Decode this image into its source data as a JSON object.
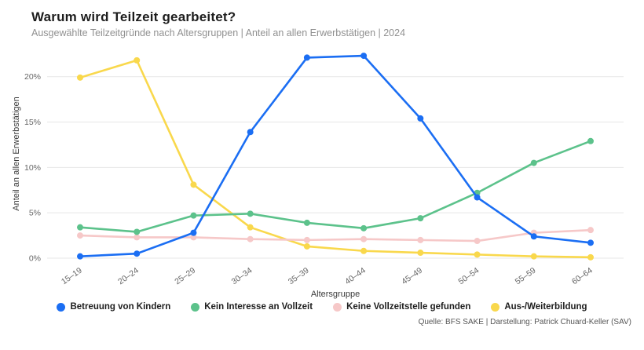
{
  "header": {
    "title": "Warum wird Teilzeit gearbeitet?",
    "subtitle": "Ausgewählte Teilzeitgründe nach Altersgruppen | Anteil an allen Erwerbstätigen | 2024"
  },
  "footer": {
    "source": "Quelle: BFS SAKE | Darstellung: Patrick Chuard-Keller (SAV)"
  },
  "chart_data": {
    "type": "line",
    "title": "Warum wird Teilzeit gearbeitet?",
    "subtitle": "Ausgewählte Teilzeitgründe nach Altersgruppen | Anteil an allen Erwerbstätigen | 2024",
    "xlabel": "Altersgruppe",
    "ylabel": "Anteil an allen Erwerbstätigen",
    "categories": [
      "15–19",
      "20–24",
      "25–29",
      "30–34",
      "35–39",
      "40–44",
      "45–49",
      "50–54",
      "55–59",
      "60–64"
    ],
    "series": [
      {
        "name": "Betreuung von Kindern",
        "color": "#1b6ef3",
        "values": [
          0.2,
          0.5,
          2.8,
          13.9,
          22.1,
          22.3,
          15.4,
          6.7,
          2.4,
          1.7
        ]
      },
      {
        "name": "Kein Interesse an Vollzeit",
        "color": "#5cc28b",
        "values": [
          3.4,
          2.9,
          4.7,
          4.9,
          3.9,
          3.3,
          4.4,
          7.2,
          10.5,
          12.9
        ]
      },
      {
        "name": "Keine Vollzeitstelle gefunden",
        "color": "#f6c8c8",
        "values": [
          2.5,
          2.3,
          2.3,
          2.1,
          2.0,
          2.1,
          2.0,
          1.9,
          2.8,
          3.1
        ]
      },
      {
        "name": "Aus-/Weiterbildung",
        "color": "#f9d84c",
        "values": [
          19.9,
          21.8,
          8.1,
          3.4,
          1.3,
          0.8,
          0.6,
          0.4,
          0.2,
          0.1
        ]
      }
    ],
    "ylim": [
      0,
      23
    ],
    "yticks": [
      0,
      5,
      10,
      15,
      20
    ],
    "ytick_labels": [
      "0%",
      "5%",
      "10%",
      "15%",
      "20%"
    ],
    "grid": true,
    "legend_position": "bottom"
  }
}
